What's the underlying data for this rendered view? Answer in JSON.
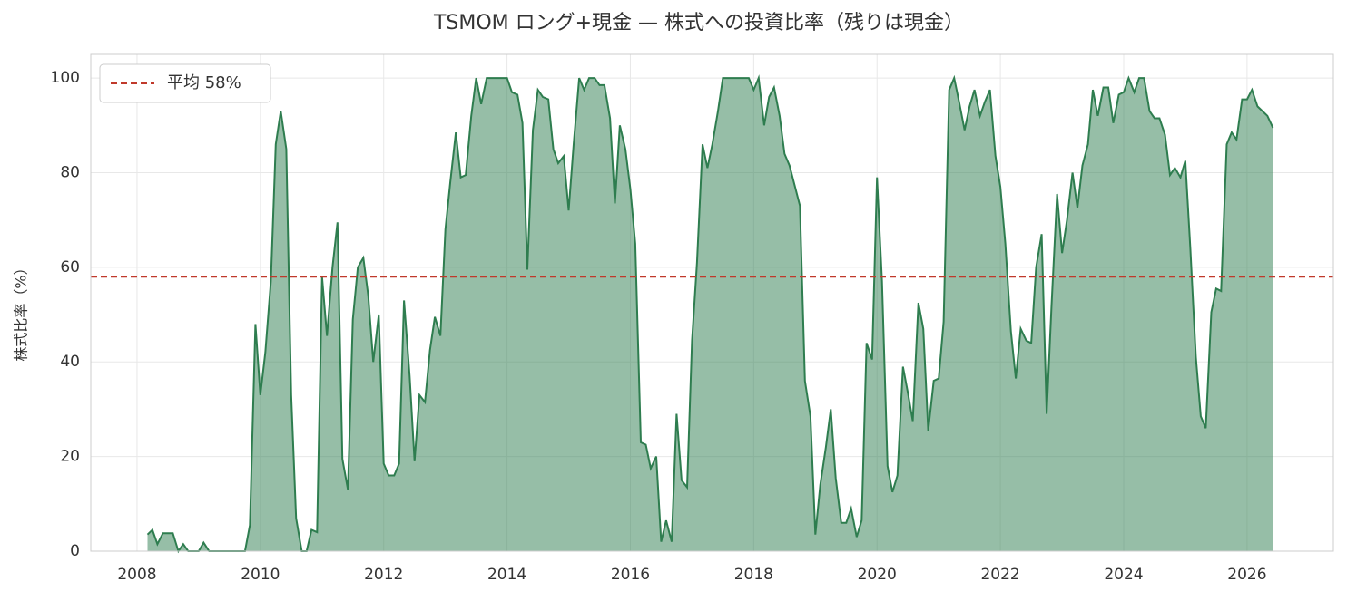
{
  "chart_data": {
    "type": "area",
    "title": "TSMOM ロング+現金 — 株式への投資比率（残りは現金）",
    "ylabel": "株式比率（%）",
    "xlim": [
      2007.25,
      2027.4
    ],
    "xticks": [
      2008,
      2010,
      2012,
      2014,
      2016,
      2018,
      2020,
      2022,
      2024,
      2026
    ],
    "ylim": [
      0,
      105
    ],
    "yticks": [
      0,
      20,
      40,
      60,
      80,
      100
    ],
    "grid": true,
    "legend": "upper left",
    "mean_line": {
      "value": 58,
      "label": "平均 58%",
      "color": "#c0392b"
    },
    "series": [
      {
        "color": "#2e7d4f",
        "x": [
          2008.17,
          2008.25,
          2008.33,
          2008.42,
          2008.5,
          2008.58,
          2008.67,
          2008.75,
          2008.83,
          2008.92,
          2009,
          2009.08,
          2009.17,
          2009.25,
          2009.33,
          2009.42,
          2009.5,
          2009.58,
          2009.67,
          2009.75,
          2009.83,
          2009.92,
          2010,
          2010.08,
          2010.17,
          2010.25,
          2010.33,
          2010.42,
          2010.5,
          2010.58,
          2010.67,
          2010.75,
          2010.83,
          2010.92,
          2011,
          2011.08,
          2011.17,
          2011.25,
          2011.33,
          2011.42,
          2011.5,
          2011.58,
          2011.67,
          2011.75,
          2011.83,
          2011.92,
          2012,
          2012.08,
          2012.17,
          2012.25,
          2012.33,
          2012.42,
          2012.5,
          2012.58,
          2012.67,
          2012.75,
          2012.83,
          2012.92,
          2013,
          2013.08,
          2013.17,
          2013.25,
          2013.33,
          2013.42,
          2013.5,
          2013.58,
          2013.67,
          2013.75,
          2013.83,
          2013.92,
          2014,
          2014.08,
          2014.17,
          2014.25,
          2014.33,
          2014.42,
          2014.5,
          2014.58,
          2014.67,
          2014.75,
          2014.83,
          2014.92,
          2015,
          2015.08,
          2015.17,
          2015.25,
          2015.33,
          2015.42,
          2015.5,
          2015.58,
          2015.67,
          2015.75,
          2015.83,
          2015.92,
          2016,
          2016.08,
          2016.17,
          2016.25,
          2016.33,
          2016.42,
          2016.5,
          2016.58,
          2016.67,
          2016.75,
          2016.83,
          2016.92,
          2017,
          2017.08,
          2017.17,
          2017.25,
          2017.33,
          2017.42,
          2017.5,
          2017.58,
          2017.67,
          2017.75,
          2017.83,
          2017.92,
          2018,
          2018.08,
          2018.17,
          2018.25,
          2018.33,
          2018.42,
          2018.5,
          2018.58,
          2018.67,
          2018.75,
          2018.83,
          2018.92,
          2019,
          2019.08,
          2019.17,
          2019.25,
          2019.33,
          2019.42,
          2019.5,
          2019.58,
          2019.67,
          2019.75,
          2019.83,
          2019.92,
          2020,
          2020.08,
          2020.17,
          2020.25,
          2020.33,
          2020.42,
          2020.5,
          2020.58,
          2020.67,
          2020.75,
          2020.83,
          2020.92,
          2021,
          2021.08,
          2021.17,
          2021.25,
          2021.33,
          2021.42,
          2021.5,
          2021.58,
          2021.67,
          2021.75,
          2021.83,
          2021.92,
          2022,
          2022.08,
          2022.17,
          2022.25,
          2022.33,
          2022.42,
          2022.5,
          2022.58,
          2022.67,
          2022.75,
          2022.83,
          2022.92,
          2023,
          2023.08,
          2023.17,
          2023.25,
          2023.33,
          2023.42,
          2023.5,
          2023.58,
          2023.67,
          2023.75,
          2023.83,
          2023.92,
          2024,
          2024.08,
          2024.17,
          2024.25,
          2024.33,
          2024.42,
          2024.5,
          2024.58,
          2024.67,
          2024.75,
          2024.83,
          2024.92,
          2025,
          2025.08,
          2025.17,
          2025.25,
          2025.33,
          2025.42,
          2025.5,
          2025.58,
          2025.67,
          2025.75,
          2025.83,
          2025.92,
          2026,
          2026.08,
          2026.17,
          2026.25,
          2026.33,
          2026.42
        ],
        "values": [
          3.5,
          4.5,
          1.5,
          3.8,
          3.8,
          3.8,
          0,
          1.5,
          0,
          0,
          0,
          1.8,
          0,
          0,
          0,
          0,
          0,
          0,
          0,
          0,
          5.5,
          48,
          33,
          42,
          57,
          86,
          93,
          85,
          33,
          7,
          0,
          0,
          4.5,
          4,
          58,
          45.5,
          60,
          69.5,
          19.5,
          13,
          49,
          60,
          62,
          54,
          40,
          50,
          18.5,
          16,
          16,
          18.5,
          53,
          37,
          19,
          33,
          31.5,
          42.5,
          49.5,
          45.5,
          68,
          78,
          88.5,
          79,
          79.5,
          92,
          100,
          94.5,
          100,
          100,
          100,
          100,
          100,
          97,
          96.5,
          90.5,
          59.5,
          89,
          97.5,
          96,
          95.5,
          85,
          82,
          83.5,
          72,
          86,
          100,
          97.5,
          100,
          100,
          98.5,
          98.5,
          91.5,
          73.5,
          90,
          85,
          76.5,
          65,
          23,
          22.5,
          17.5,
          20,
          2,
          6.5,
          2,
          29,
          15,
          13.5,
          44.5,
          61,
          86,
          81,
          86,
          93,
          100,
          100,
          100,
          100,
          100,
          100,
          97.5,
          100,
          90,
          96,
          98,
          92,
          84,
          81.5,
          77,
          73,
          36,
          28.5,
          3.5,
          14,
          22,
          30,
          15.5,
          6,
          6,
          9,
          3,
          6.5,
          44,
          40.5,
          79,
          57,
          18,
          12.5,
          16,
          39,
          33.5,
          27.5,
          52.5,
          47,
          25.5,
          36,
          36.5,
          48.5,
          97.5,
          100,
          95,
          89,
          94,
          97.5,
          92,
          95,
          97.5,
          83.5,
          77,
          65,
          46.5,
          36.5,
          47,
          44.5,
          44,
          60,
          67,
          29,
          52,
          75.5,
          63,
          70,
          80,
          72.5,
          81.5,
          86,
          97.5,
          92,
          98,
          98,
          90.5,
          96.5,
          97,
          100,
          97,
          100,
          100,
          93,
          91.5,
          91.5,
          88,
          79.5,
          81,
          79,
          82.5,
          64,
          41,
          28.5,
          26,
          50.5,
          55.5,
          55,
          86,
          88.5,
          87,
          95.5,
          95.5,
          97.5,
          94,
          93,
          92,
          89.5
        ]
      }
    ]
  }
}
